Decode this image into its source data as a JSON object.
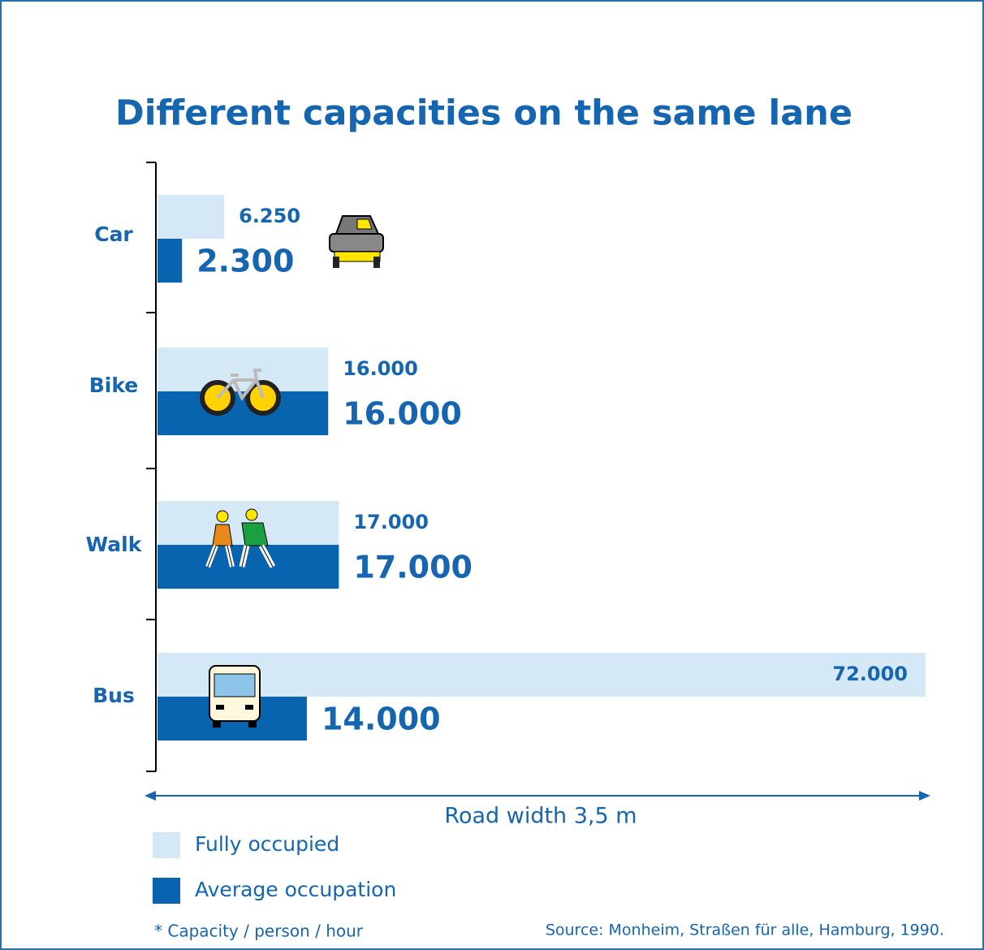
{
  "chart_data": {
    "type": "bar",
    "orientation": "horizontal",
    "title": "Different capacities on the same lane",
    "x_label": "Road width 3,5 m",
    "categories": [
      "Car",
      "Bike",
      "Walk",
      "Bus"
    ],
    "series": [
      {
        "name": "Fully occupied",
        "color": "#d5e8f5",
        "values": [
          6250,
          16000,
          17000,
          72000
        ],
        "value_labels": [
          "6.250",
          "16.000",
          "17.000",
          "72.000"
        ]
      },
      {
        "name": "Average occupation",
        "color": "#0964b0",
        "values": [
          2300,
          16000,
          17000,
          14000
        ],
        "value_labels": [
          "2.300",
          "16.000",
          "17.000",
          "14.000"
        ]
      }
    ],
    "xlim": [
      0,
      72000
    ],
    "footnote": "* Capacity / person / hour",
    "source": "Source: Monheim, Straßen für alle, Hamburg, 1990."
  }
}
